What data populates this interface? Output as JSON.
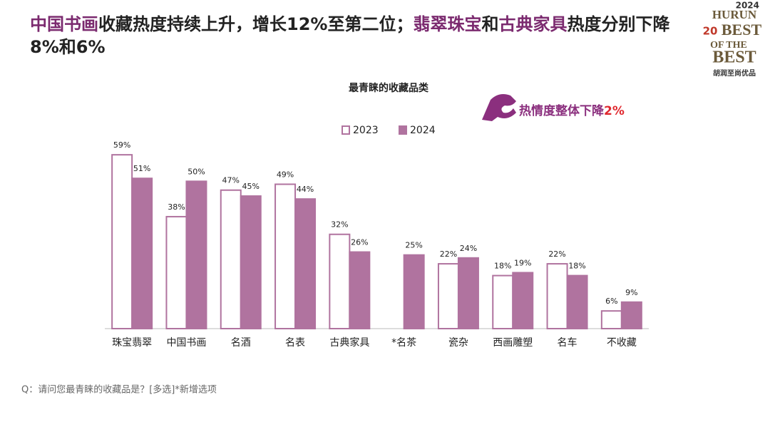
{
  "title": [
    {
      "text": "中国书画",
      "color": "#7b2a6f"
    },
    {
      "text": "收藏热度持续上升，增长12%至第二位；",
      "color": "#222222"
    },
    {
      "text": "翡翠珠宝",
      "color": "#7b2a6f"
    },
    {
      "text": "和",
      "color": "#222222"
    },
    {
      "text": "古典家具",
      "color": "#7b2a6f"
    },
    {
      "text": "热度分别下降8%和6%",
      "color": "#222222"
    }
  ],
  "logo": {
    "year": "2024",
    "brand": "HURUN",
    "edition": "20",
    "line1": "BEST",
    "line2": "OF THE",
    "line3": "BEST",
    "tagline": "胡润至尚优品"
  },
  "callout": {
    "text": "热情度整体下降",
    "value": "2%"
  },
  "footnote": "Q：请问您最青睐的收藏品是？[多选]*新增选项",
  "chart_data": {
    "type": "bar",
    "title": "最青睐的收藏品类",
    "categories": [
      "珠宝翡翠",
      "中国书画",
      "名酒",
      "名表",
      "古典家具",
      "*名茶",
      "瓷杂",
      "西画雕塑",
      "名车",
      "不收藏"
    ],
    "series": [
      {
        "name": "2023",
        "color": "#b0739f",
        "fill": "#ffffff",
        "values": [
          59,
          38,
          47,
          49,
          32,
          null,
          22,
          18,
          22,
          6
        ],
        "value_labels": [
          "59%",
          "38%",
          "47%",
          "49%",
          "32%",
          null,
          "22%",
          "18%",
          "22%",
          "6%"
        ]
      },
      {
        "name": "2024",
        "color": "#b0739f",
        "fill": "#b0739f",
        "values": [
          51,
          50,
          45,
          44,
          26,
          25,
          24,
          19,
          18,
          9
        ],
        "value_labels": [
          "51%",
          "50%",
          "45%",
          "44%",
          "26%",
          "25%",
          "24%",
          "19%",
          "18%",
          "9%"
        ]
      }
    ],
    "ylim": [
      0,
      60
    ]
  }
}
